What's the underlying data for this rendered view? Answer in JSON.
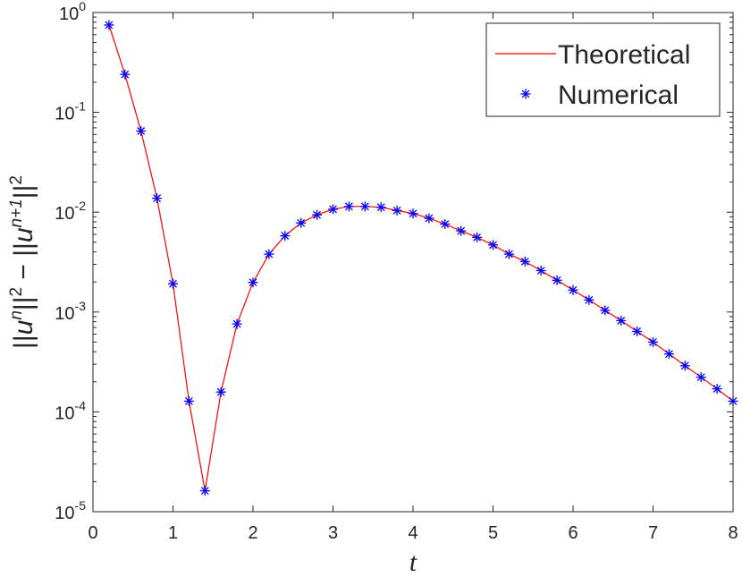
{
  "chart_data": {
    "type": "line",
    "xlabel": "t",
    "ylabel": "||u^n||^2 − ||u^{n+1}||^2",
    "x_range": [
      0,
      8
    ],
    "y_range": [
      1e-05,
      1
    ],
    "y_scale": "log",
    "grid": false,
    "legend_position": "top-right",
    "x_ticks": [
      0,
      1,
      2,
      3,
      4,
      5,
      6,
      7,
      8
    ],
    "y_ticks": [
      {
        "value": 1e-05,
        "base": "10",
        "exp": "-5"
      },
      {
        "value": 0.0001,
        "base": "10",
        "exp": "-4"
      },
      {
        "value": 0.001,
        "base": "10",
        "exp": "-3"
      },
      {
        "value": 0.01,
        "base": "10",
        "exp": "-2"
      },
      {
        "value": 0.1,
        "base": "10",
        "exp": "-1"
      },
      {
        "value": 1,
        "base": "10",
        "exp": "0"
      }
    ],
    "x": [
      0.2,
      0.4,
      0.6,
      0.8,
      1.0,
      1.2,
      1.4,
      1.6,
      1.8,
      2.0,
      2.2,
      2.4,
      2.6,
      2.8,
      3.0,
      3.2,
      3.4,
      3.6,
      3.8,
      4.0,
      4.2,
      4.4,
      4.6,
      4.8,
      5.0,
      5.2,
      5.4,
      5.6,
      5.8,
      6.0,
      6.2,
      6.4,
      6.6,
      6.8,
      7.0,
      7.2,
      7.4,
      7.6,
      7.8,
      8.0
    ],
    "series": [
      {
        "name": "Theoretical",
        "style": "line",
        "color": "#ff0000",
        "values": [
          0.75,
          0.24,
          0.065,
          0.0138,
          0.00192,
          0.000128,
          1.62e-05,
          0.000158,
          0.00076,
          0.00198,
          0.0038,
          0.0058,
          0.0078,
          0.0094,
          0.0107,
          0.0114,
          0.0114,
          0.0112,
          0.0104,
          0.0097,
          0.0087,
          0.0076,
          0.0065,
          0.0056,
          0.0047,
          0.0038,
          0.0032,
          0.0026,
          0.00208,
          0.00166,
          0.00132,
          0.00104,
          0.00082,
          0.00064,
          0.0005,
          0.00038,
          0.00029,
          0.000222,
          0.00017,
          0.000128
        ]
      },
      {
        "name": "Numerical",
        "style": "marker",
        "marker": "*",
        "color": "#0000ff",
        "values": [
          0.75,
          0.24,
          0.065,
          0.0138,
          0.00192,
          0.000128,
          1.62e-05,
          0.000158,
          0.00076,
          0.00198,
          0.0038,
          0.0058,
          0.0078,
          0.0094,
          0.0107,
          0.0114,
          0.0114,
          0.0112,
          0.0104,
          0.0097,
          0.0087,
          0.0076,
          0.0065,
          0.0056,
          0.0047,
          0.0038,
          0.0032,
          0.0026,
          0.00208,
          0.00166,
          0.00132,
          0.00104,
          0.00082,
          0.00064,
          0.0005,
          0.00038,
          0.00029,
          0.000222,
          0.00017,
          0.000128
        ]
      }
    ]
  }
}
